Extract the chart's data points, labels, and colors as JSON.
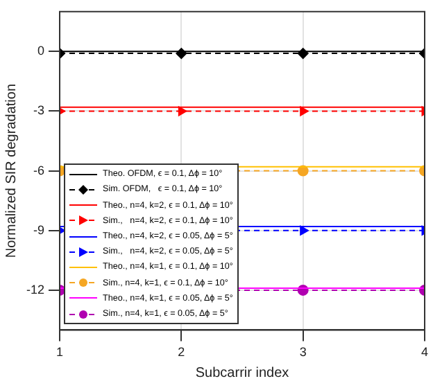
{
  "chart_data": {
    "type": "line",
    "xlabel": "Subcarrir index",
    "ylabel": "Normalized SIR degradation",
    "x": [
      1,
      2,
      3,
      4
    ],
    "xlim": [
      1,
      4
    ],
    "xticks": [
      1,
      2,
      3,
      4
    ],
    "ylim": [
      -14,
      2
    ],
    "yticks": [
      -12,
      -9,
      -6,
      -3,
      0
    ],
    "grid": true,
    "legend": "bottom left",
    "series": [
      {
        "name": "Theo. OFDM, ϵ = 0.1, Δϕ = 10°",
        "color": "#000000",
        "values": [
          0,
          0,
          0,
          0
        ],
        "marker": "none",
        "line_style": "solid"
      },
      {
        "name": "Sim. OFDM,   ϵ = 0.1, Δϕ = 10°",
        "color": "#000000",
        "values": [
          -0.1,
          -0.1,
          -0.1,
          -0.1
        ],
        "marker": "diamond",
        "line_style": "dashed"
      },
      {
        "name": "Theo., n=4, k=2, ϵ = 0.1, Δϕ = 10°",
        "color": "#ff0000",
        "values": [
          -2.8,
          -2.8,
          -2.8,
          -2.8
        ],
        "marker": "none",
        "line_style": "solid"
      },
      {
        "name": "Sim.,   n=4, k=2, ϵ = 0.1, Δϕ = 10°",
        "color": "#ff0000",
        "values": [
          -3,
          -3,
          -3,
          -3
        ],
        "marker": "triangle",
        "line_style": "dashed"
      },
      {
        "name": "Theo., n=4, k=2, ϵ = 0.05, Δϕ = 5°",
        "color": "#0000ff",
        "values": [
          -8.8,
          null,
          -8.8,
          -8.8
        ],
        "marker": "none",
        "line_style": "solid"
      },
      {
        "name": "Sim.,   n=4, k=2, ϵ = 0.05, Δϕ = 5°",
        "color": "#0000ff",
        "values": [
          -9,
          null,
          -9,
          -9
        ],
        "marker": "triangle",
        "line_style": "dashed"
      },
      {
        "name": "Theo., n=4, k=1, ϵ = 0.1, Δϕ = 10°",
        "color": "#ffc000",
        "values": [
          -5.8,
          null,
          -5.8,
          -5.8
        ],
        "marker": "none",
        "line_style": "solid"
      },
      {
        "name": "Sim., n=4, k=1, ϵ = 0.1, Δϕ = 10°",
        "color": "#f5a623",
        "values": [
          -6,
          null,
          -6,
          -6
        ],
        "marker": "circle",
        "line_style": "dashed"
      },
      {
        "name": "Theo., n=4, k=1, ϵ = 0.05, Δϕ = 5°",
        "color": "#ff00ff",
        "values": [
          -11.9,
          null,
          -11.9,
          -11.9
        ],
        "marker": "none",
        "line_style": "solid"
      },
      {
        "name": "Sim., n=4, k=1, ϵ = 0.05, Δϕ = 5°",
        "color": "#b000b0",
        "values": [
          -12,
          null,
          -12,
          -12
        ],
        "marker": "circle",
        "line_style": "dashed"
      }
    ]
  }
}
